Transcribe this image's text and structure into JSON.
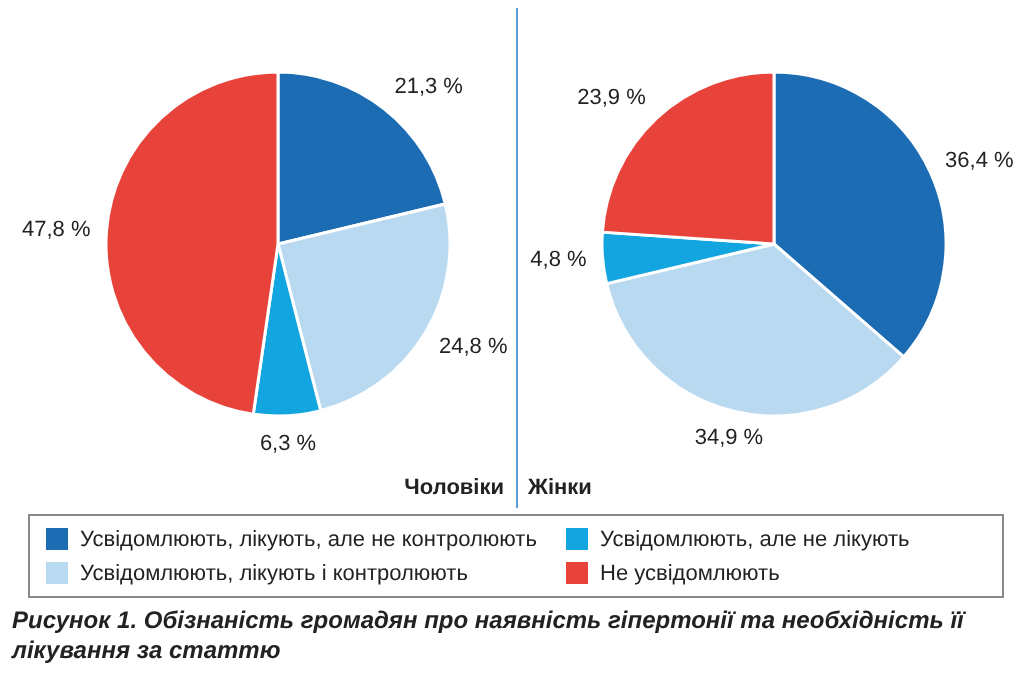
{
  "chart_data": [
    {
      "type": "pie",
      "title": "Чоловіки",
      "categories": [
        "Усвідомлюють, лікують, але не контролюють",
        "Усвідомлюють, лікують і контролюють",
        "Усвідомлюють, але не лікують",
        "Не усвідомлюють"
      ],
      "values": [
        21.3,
        24.8,
        6.3,
        47.8
      ],
      "value_labels": [
        "21,3 %",
        "24,8 %",
        "6,3 %",
        "47,8 %"
      ],
      "colors": [
        "#1c6cb4",
        "#b9d9f1",
        "#12a5e0",
        "#e8433a"
      ],
      "legend": "bottom",
      "annotations": [
        "Рисунок 1. Обізнаність громадян про наявність гіпертонії та необхідність її лікування за статтю"
      ]
    },
    {
      "type": "pie",
      "title": "Жінки",
      "values": [
        36.4,
        34.9,
        4.8,
        23.9
      ],
      "value_labels": [
        "36,4 %",
        "34,9 %",
        "4,8 %",
        "23,9 %"
      ],
      "colors": [
        "#1c6cb4",
        "#b9d9f1",
        "#12a5e0",
        "#e8433a"
      ]
    }
  ]
}
